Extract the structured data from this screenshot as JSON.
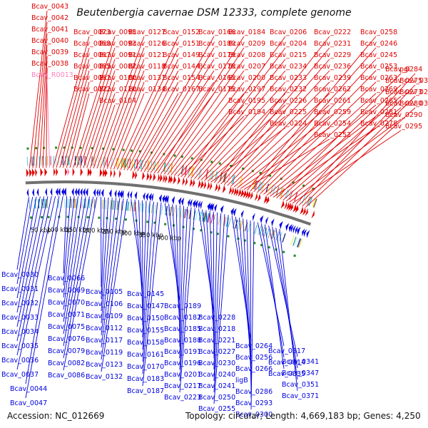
{
  "title": "Beutenbergia cavernae DSM 12333, complete genome",
  "accession": "Accession: NC_012669",
  "topology": "Topology: circular; Length: 4,669,183 bp; Genes: 4,250",
  "colors": {
    "forward": "#e00000",
    "reverse": "#0000e0",
    "rna": "#ff80c0",
    "backbone": "#707070"
  },
  "kbp_ticks": [
    "50 kbp",
    "100 kbp",
    "150 kbp",
    "200 kbp",
    "250 kbp",
    "300 kbp",
    "350 kbp",
    "400 kbp"
  ],
  "forward_labels": [
    "Bcav_0043",
    "Bcav_0042",
    "Bcav_0041",
    "Bcav_0040",
    "Bcav_0039",
    "Bcav_0038",
    "Bcav_R0013",
    "Bcav_0073",
    "Bcav_0068",
    "Bcav_0067",
    "Bcav_0065",
    "Bcav_0061",
    "Bcav_0072",
    "Bcav_0095",
    "Bcav_0093",
    "Bcav_0091",
    "Bcav_0087",
    "Bcav_0100",
    "Bcav_0110",
    "Bcav_0104",
    "Bcav_0127",
    "Bcav_0126",
    "Bcav_0121",
    "Bcav_0118",
    "Bcav_0131",
    "Bcav_0134",
    "Bcav_0152",
    "Bcav_0151",
    "Bcav_0149",
    "Bcav_0144",
    "Bcav_0154",
    "Bcav_0167",
    "Bcav_0166",
    "Bcav_0180",
    "Bcav_0179",
    "Bcav_0178",
    "Bcav_0165",
    "Bcav_0175",
    "Bcav_0184",
    "Bcav_0209",
    "Bcav_0208",
    "Bcav_0207",
    "Bcav_0200",
    "Bcav_0197",
    "Bcav_0195",
    "Bcav_0194",
    "Bcav_0206",
    "Bcav_0204",
    "Bcav_0215",
    "Bcav_0234",
    "Bcav_0233",
    "Bcav_0232",
    "Bcav_0226",
    "Bcav_0225",
    "Bcav_0224",
    "Bcav_0222",
    "Bcav_0231",
    "Bcav_0229",
    "Bcav_0236",
    "Bcav_0239",
    "Bcav_0262",
    "Bcav_0261",
    "Bcav_0259",
    "Bcav_0254",
    "Bcav_0252",
    "Bcav_0258",
    "Bcav_0246",
    "Bcav_0245",
    "Bcav_0253",
    "Bcav_0263",
    "Bcav_0269",
    "Bcav_0265",
    "Bcav_0281",
    "Bcav_0278",
    "Bcav_0284",
    "Bcav_0275",
    "Bcav_0273",
    "Bcav_0280",
    "Bcav_0290",
    "Bcav_0295",
    "pgi",
    "Bcav_0309",
    "Bcav_0285",
    "Bcav_0311"
  ],
  "reverse_labels": [
    "Bcav_0030",
    "Bcav_0031",
    "Bcav_0032",
    "Bcav_0033",
    "Bcav_0034",
    "Bcav_0035",
    "Bcav_0036",
    "Bcav_0037",
    "Bcav_0044",
    "Bcav_0047",
    "Bcav_0066",
    "Bcav_0069",
    "Bcav_0070",
    "Bcav_0071",
    "Bcav_0075",
    "Bcav_0076",
    "Bcav_0079",
    "Bcav_0082",
    "Bcav_0086",
    "Bcav_0105",
    "Bcav_0106",
    "Bcav_0109",
    "Bcav_0112",
    "Bcav_0117",
    "Bcav_0119",
    "Bcav_0123",
    "Bcav_0132",
    "Bcav_0145",
    "Bcav_0147",
    "Bcav_0150",
    "Bcav_0155",
    "Bcav_0158",
    "Bcav_0161",
    "Bcav_0170",
    "Bcav_0183",
    "Bcav_0187",
    "Bcav_0189",
    "Bcav_0182",
    "Bcav_0185",
    "Bcav_0188",
    "Bcav_0191",
    "Bcav_0196",
    "Bcav_0201",
    "Bcav_0217",
    "Bcav_0223",
    "Bcav_0228",
    "Bcav_0218",
    "Bcav_0221",
    "Bcav_0227",
    "Bcav_0230",
    "Bcav_0240",
    "Bcav_0241",
    "Bcav_0250",
    "Bcav_0255",
    "Bcav_0264",
    "Bcav_0256",
    "Bcav_0266",
    "ligB",
    "Bcav_0286",
    "Bcav_0293",
    "Bcav_0300",
    "Bcav_0317",
    "Bcav_0314",
    "Bcav_0335",
    "Bcav_0341",
    "Bcav_0347",
    "Bcav_0351",
    "Bcav_0371"
  ]
}
